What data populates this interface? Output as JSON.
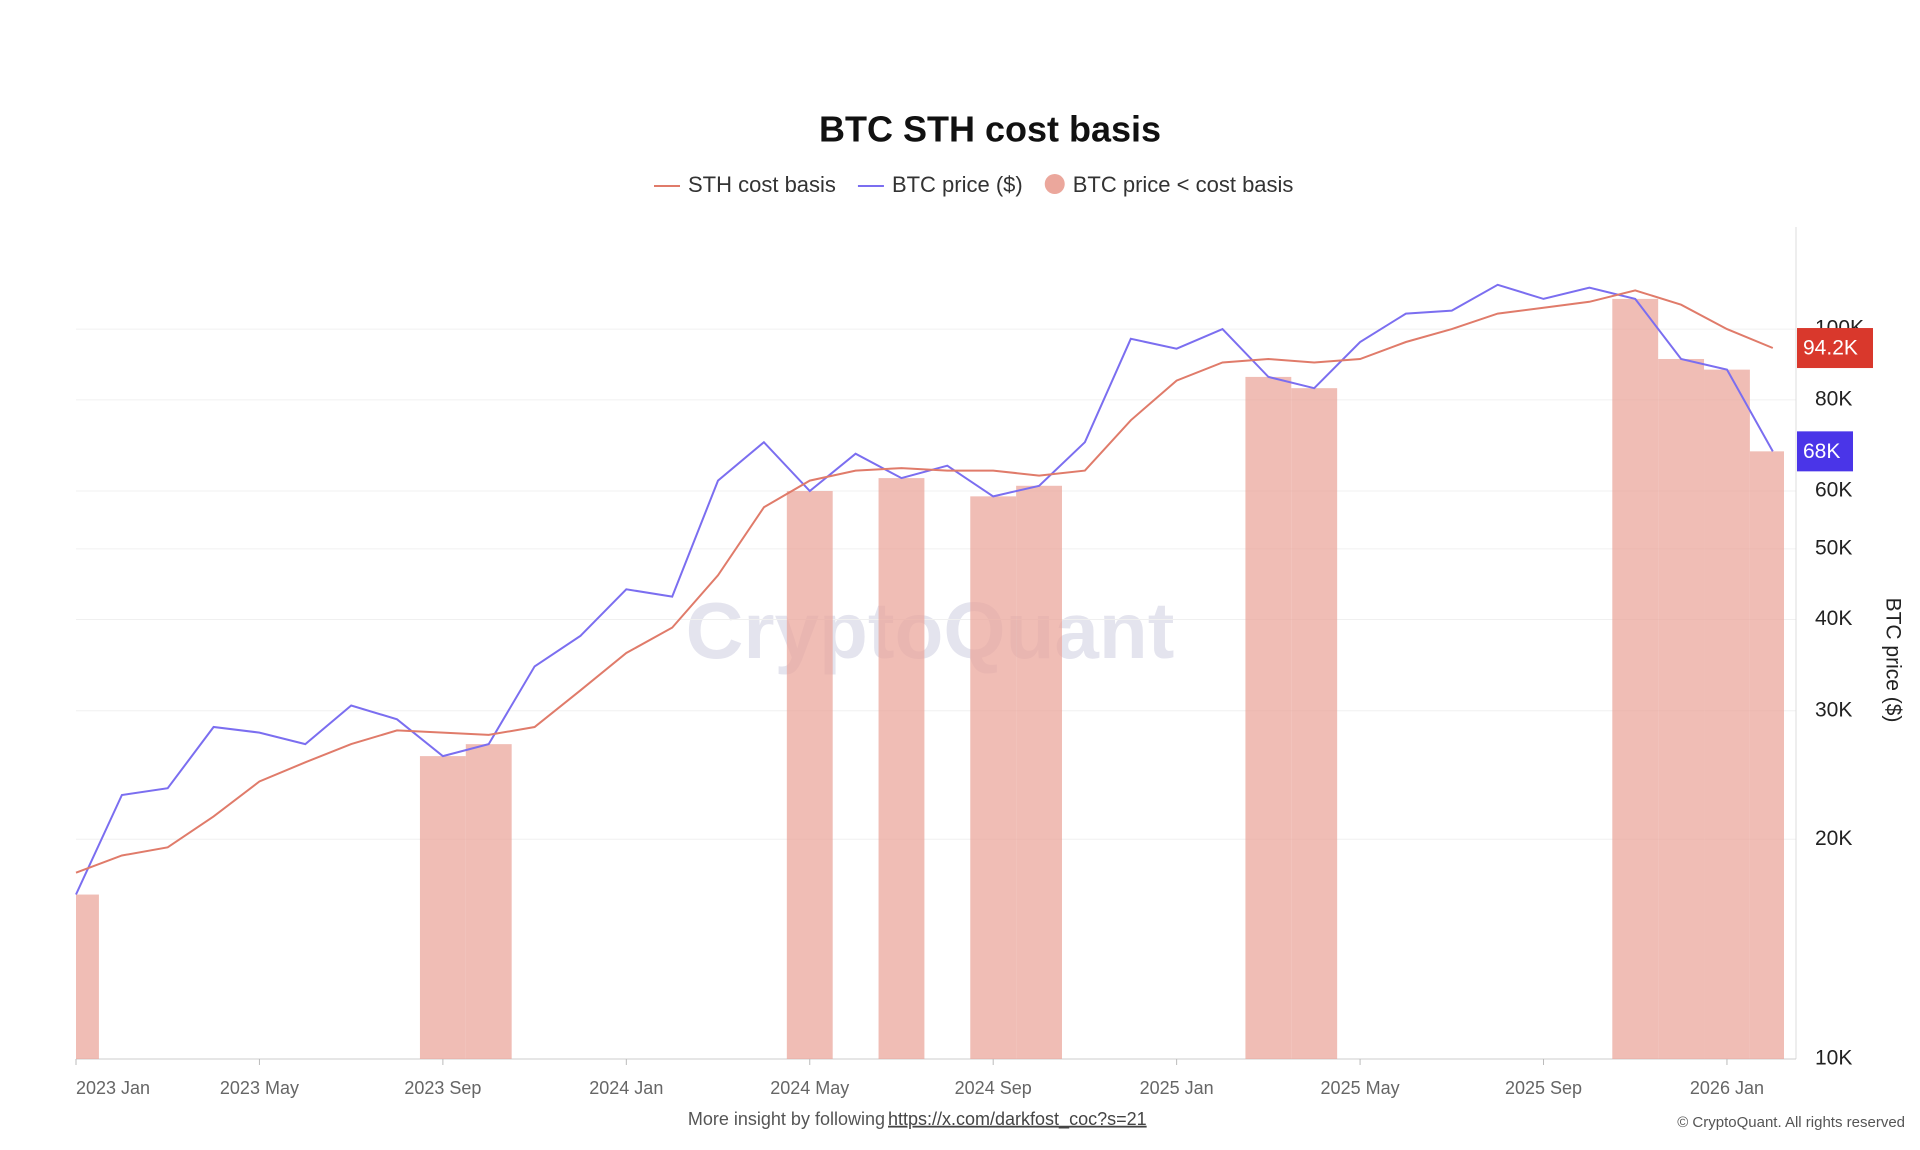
{
  "chart_data": {
    "type": "line",
    "title": "BTC STH cost basis",
    "y_label": "BTC price ($)",
    "watermark": "CryptoQuant",
    "footer": {
      "text": "More insight by following",
      "link": "https://x.com/darkfost_coc?s=21",
      "copyright": "© CryptoQuant. All rights reserved"
    },
    "log_y": true,
    "grid": true,
    "x": [
      "2023-01",
      "2023-02",
      "2023-03",
      "2023-04",
      "2023-05",
      "2023-06",
      "2023-07",
      "2023-08",
      "2023-09",
      "2023-10",
      "2023-11",
      "2023-12",
      "2024-01",
      "2024-02",
      "2024-03",
      "2024-04",
      "2024-05",
      "2024-06",
      "2024-07",
      "2024-08",
      "2024-09",
      "2024-10",
      "2024-11",
      "2024-12",
      "2025-01",
      "2025-02",
      "2025-03",
      "2025-04",
      "2025-05",
      "2025-06",
      "2025-07",
      "2025-08",
      "2025-09",
      "2025-10",
      "2025-11",
      "2025-12",
      "2026-01",
      "2026-02"
    ],
    "series": [
      {
        "name": "STH cost basis",
        "color": "#e07b6a",
        "values": [
          18000,
          19000,
          19500,
          21500,
          24000,
          25500,
          27000,
          28200,
          28000,
          27800,
          28500,
          32000,
          36000,
          39000,
          46000,
          57000,
          62000,
          64000,
          64500,
          64000,
          64000,
          63000,
          64000,
          75000,
          85000,
          90000,
          91000,
          90000,
          91000,
          96000,
          100000,
          105000,
          107000,
          109000,
          113000,
          108000,
          100000,
          94200
        ],
        "value_labels": {
          "37": "94.2K"
        },
        "label_color": "#d9382c"
      },
      {
        "name": "BTC price ($)",
        "color": "#7b6ef0",
        "values": [
          16800,
          23000,
          23500,
          28500,
          28000,
          27000,
          30500,
          29200,
          26000,
          27000,
          34500,
          38000,
          44000,
          43000,
          62000,
          70000,
          60000,
          67500,
          62500,
          65000,
          59000,
          61000,
          70000,
          97000,
          94000,
          100000,
          86000,
          83000,
          96000,
          105000,
          106000,
          115000,
          110000,
          114000,
          110000,
          91000,
          88000,
          68000
        ],
        "value_labels": {
          "37": "68K"
        },
        "label_color": "#4a35e8"
      }
    ],
    "shade": {
      "name": "BTC price < cost basis",
      "color": "#eba79c"
    },
    "xticks": [
      {
        "value": "2023-01",
        "label": "2023 Jan"
      },
      {
        "value": "2023-05",
        "label": "2023 May"
      },
      {
        "value": "2023-09",
        "label": "2023 Sep"
      },
      {
        "value": "2024-01",
        "label": "2024 Jan"
      },
      {
        "value": "2024-05",
        "label": "2024 May"
      },
      {
        "value": "2024-09",
        "label": "2024 Sep"
      },
      {
        "value": "2025-01",
        "label": "2025 Jan"
      },
      {
        "value": "2025-05",
        "label": "2025 May"
      },
      {
        "value": "2025-09",
        "label": "2025 Sep"
      },
      {
        "value": "2026-01",
        "label": "2026 Jan"
      }
    ],
    "ylim": [
      10000,
      138000
    ],
    "yticks": [
      {
        "value": 10000,
        "label": "10K"
      },
      {
        "value": 20000,
        "label": "20K"
      },
      {
        "value": 30000,
        "label": "30K"
      },
      {
        "value": 40000,
        "label": "40K"
      },
      {
        "value": 50000,
        "label": "50K"
      },
      {
        "value": 60000,
        "label": "60K"
      },
      {
        "value": 80000,
        "label": "80K"
      },
      {
        "value": 100000,
        "label": "100K"
      }
    ]
  }
}
